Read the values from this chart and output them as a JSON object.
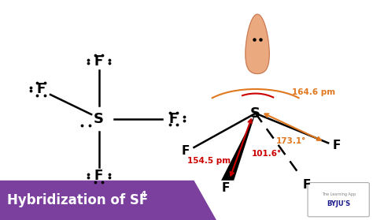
{
  "title": "Hybridization of SF",
  "title_subscript": "4",
  "bg_color": "#ffffff",
  "header_bg": "#7b3f9e",
  "header_text_color": "#ffffff",
  "angle_164": "164.6 pm",
  "angle_173": "173.1°",
  "angle_1545": "154.5 pm",
  "angle_1016": "101.6°",
  "arrow_color_orange": "#e07820",
  "arrow_color_red": "#cc0000",
  "teardrop_color": "#e8a070",
  "teardrop_edge": "#c07050"
}
